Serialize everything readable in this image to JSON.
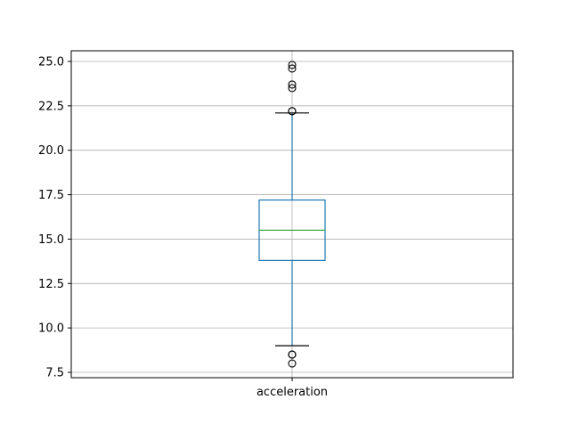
{
  "chart_data": {
    "type": "boxplot",
    "title": "",
    "xlabel": "",
    "ylabel": "",
    "categories": [
      "acceleration"
    ],
    "ylim": [
      7.2,
      25.6
    ],
    "yticks": [
      7.5,
      10.0,
      12.5,
      15.0,
      17.5,
      20.0,
      22.5,
      25.0
    ],
    "ytick_labels": [
      "7.5",
      "10.0",
      "12.5",
      "15.0",
      "17.5",
      "20.0",
      "22.5",
      "25.0"
    ],
    "grid": true,
    "boxes": [
      {
        "category": "acceleration",
        "whisker_low": 9.0,
        "q1": 13.8,
        "median": 15.5,
        "q3": 17.2,
        "whisker_high": 22.1,
        "outliers_high": [
          22.2,
          22.2,
          23.5,
          23.7,
          24.6,
          24.8
        ],
        "outliers_low": [
          8.0,
          8.5,
          8.5
        ]
      }
    ],
    "colors": {
      "box": "#1f77b4",
      "median": "#2ca02c",
      "whisker_cap": "#000000",
      "outlier": "#000000",
      "grid": "#b0b0b0",
      "axes": "#000000"
    }
  }
}
